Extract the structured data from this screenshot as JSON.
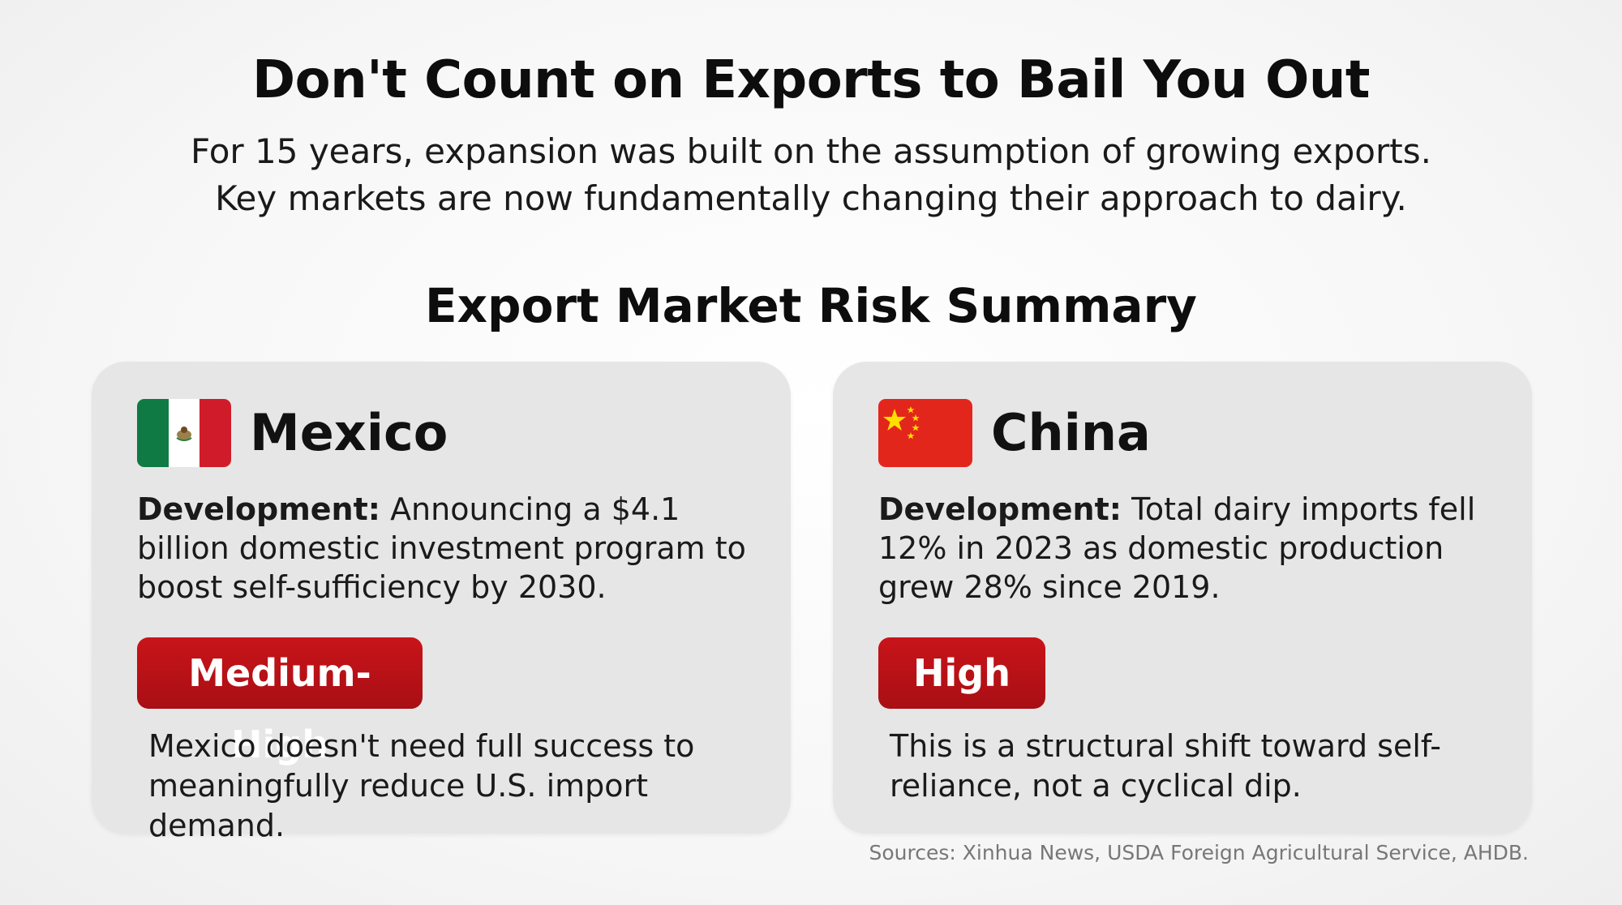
{
  "header": {
    "title": "Don't Count on Exports to Bail You Out",
    "subtitle_line1": "For 15 years, expansion was built on the assumption of growing exports.",
    "subtitle_line2": "Key markets are now fundamentally changing their approach to dairy."
  },
  "section": {
    "title": "Export Market Risk Summary"
  },
  "cards": [
    {
      "country": "Mexico",
      "flag_icon": "mexico-flag-icon",
      "development_label": "Development:",
      "development_text": " Announcing a $4.1 billion domestic investment program to boost self-sufficiency by 2030.",
      "risk_level": "Medium-High",
      "note": "Mexico doesn't need full success to meaningfully reduce U.S. import demand."
    },
    {
      "country": "China",
      "flag_icon": "china-flag-icon",
      "development_label": "Development:",
      "development_text": " Total dairy imports fell 12% in 2023 as domestic production grew 28% since 2019.",
      "risk_level": "High",
      "note": "This is a structural shift toward self-reliance, not a cyclical dip."
    }
  ],
  "footer": {
    "sources": "Sources: Xinhua News, USDA Foreign Agricultural Service, AHDB."
  },
  "colors": {
    "card_background": "#e6e6e6",
    "badge_red": "#b8121a",
    "mexico_green": "#0f7a43",
    "mexico_red": "#d01c2a",
    "china_red": "#e3261c",
    "china_star": "#ffde00"
  }
}
